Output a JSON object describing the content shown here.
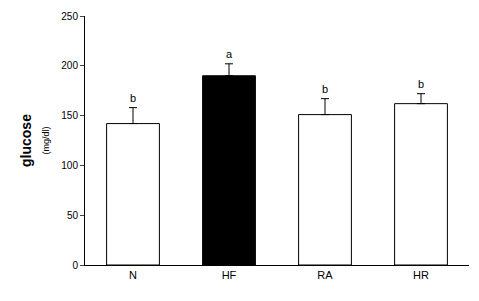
{
  "chart_data": {
    "type": "bar",
    "y_label": "glucose",
    "y_label_unit": "(mg/dl)",
    "categories": [
      "N",
      "HF",
      "RA",
      "HR"
    ],
    "values": [
      142,
      190,
      151,
      162
    ],
    "errors": [
      16,
      12,
      16,
      10
    ],
    "annotations": [
      {
        "category": "N",
        "text": "b"
      },
      {
        "category": "HF",
        "text": "a"
      },
      {
        "category": "RA",
        "text": "b"
      },
      {
        "category": "HR",
        "text": "b"
      }
    ],
    "colors": [
      "#ffffff",
      "#000000",
      "#ffffff",
      "#ffffff"
    ],
    "ylim": [
      0,
      250
    ],
    "yticks": [
      0,
      50,
      100,
      150,
      200,
      250
    ],
    "grid": false
  }
}
